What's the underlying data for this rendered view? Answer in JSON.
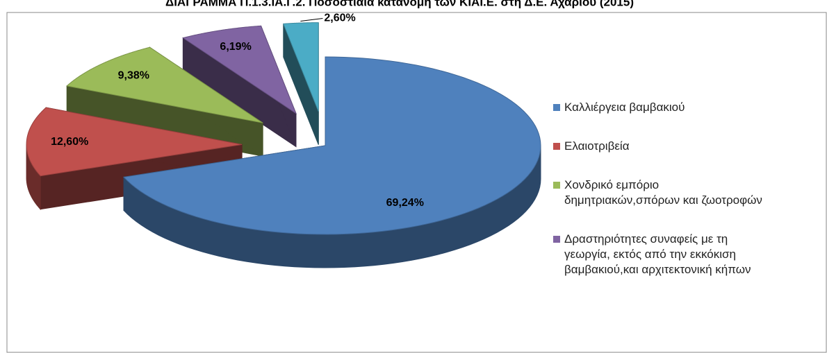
{
  "chart_data": {
    "type": "pie3d",
    "title": "ΔΙΑΓΡΑΜΜΑ Π.1.3.ΙΑ.Γ.2. Ποσοστιαία κατανομή των ΚΙΑΙ.Ε. στη Δ.Ε. Αχαρίου (2015)",
    "categories": [
      "Καλλιέργεια βαμβακιού",
      "Ελαιοτριβεία",
      "Χονδρικό εμπόριο\nδημητριακών,σπόρων και ζωοτροφών",
      "Δραστηριότητες συναφείς με τη\nγεωργία, εκτός από την εκκόκιση\nβαμβακιού,και αρχιτεκτονική κήπων",
      null
    ],
    "values": [
      69.24,
      12.6,
      9.38,
      6.19,
      2.6
    ],
    "value_labels": [
      "69,24%",
      "12,60%",
      "9,38%",
      "6,19%",
      "2,60%"
    ],
    "colors": [
      "#4f81bd",
      "#c0504d",
      "#9bbb59",
      "#8064a2",
      "#4bacc6"
    ]
  }
}
